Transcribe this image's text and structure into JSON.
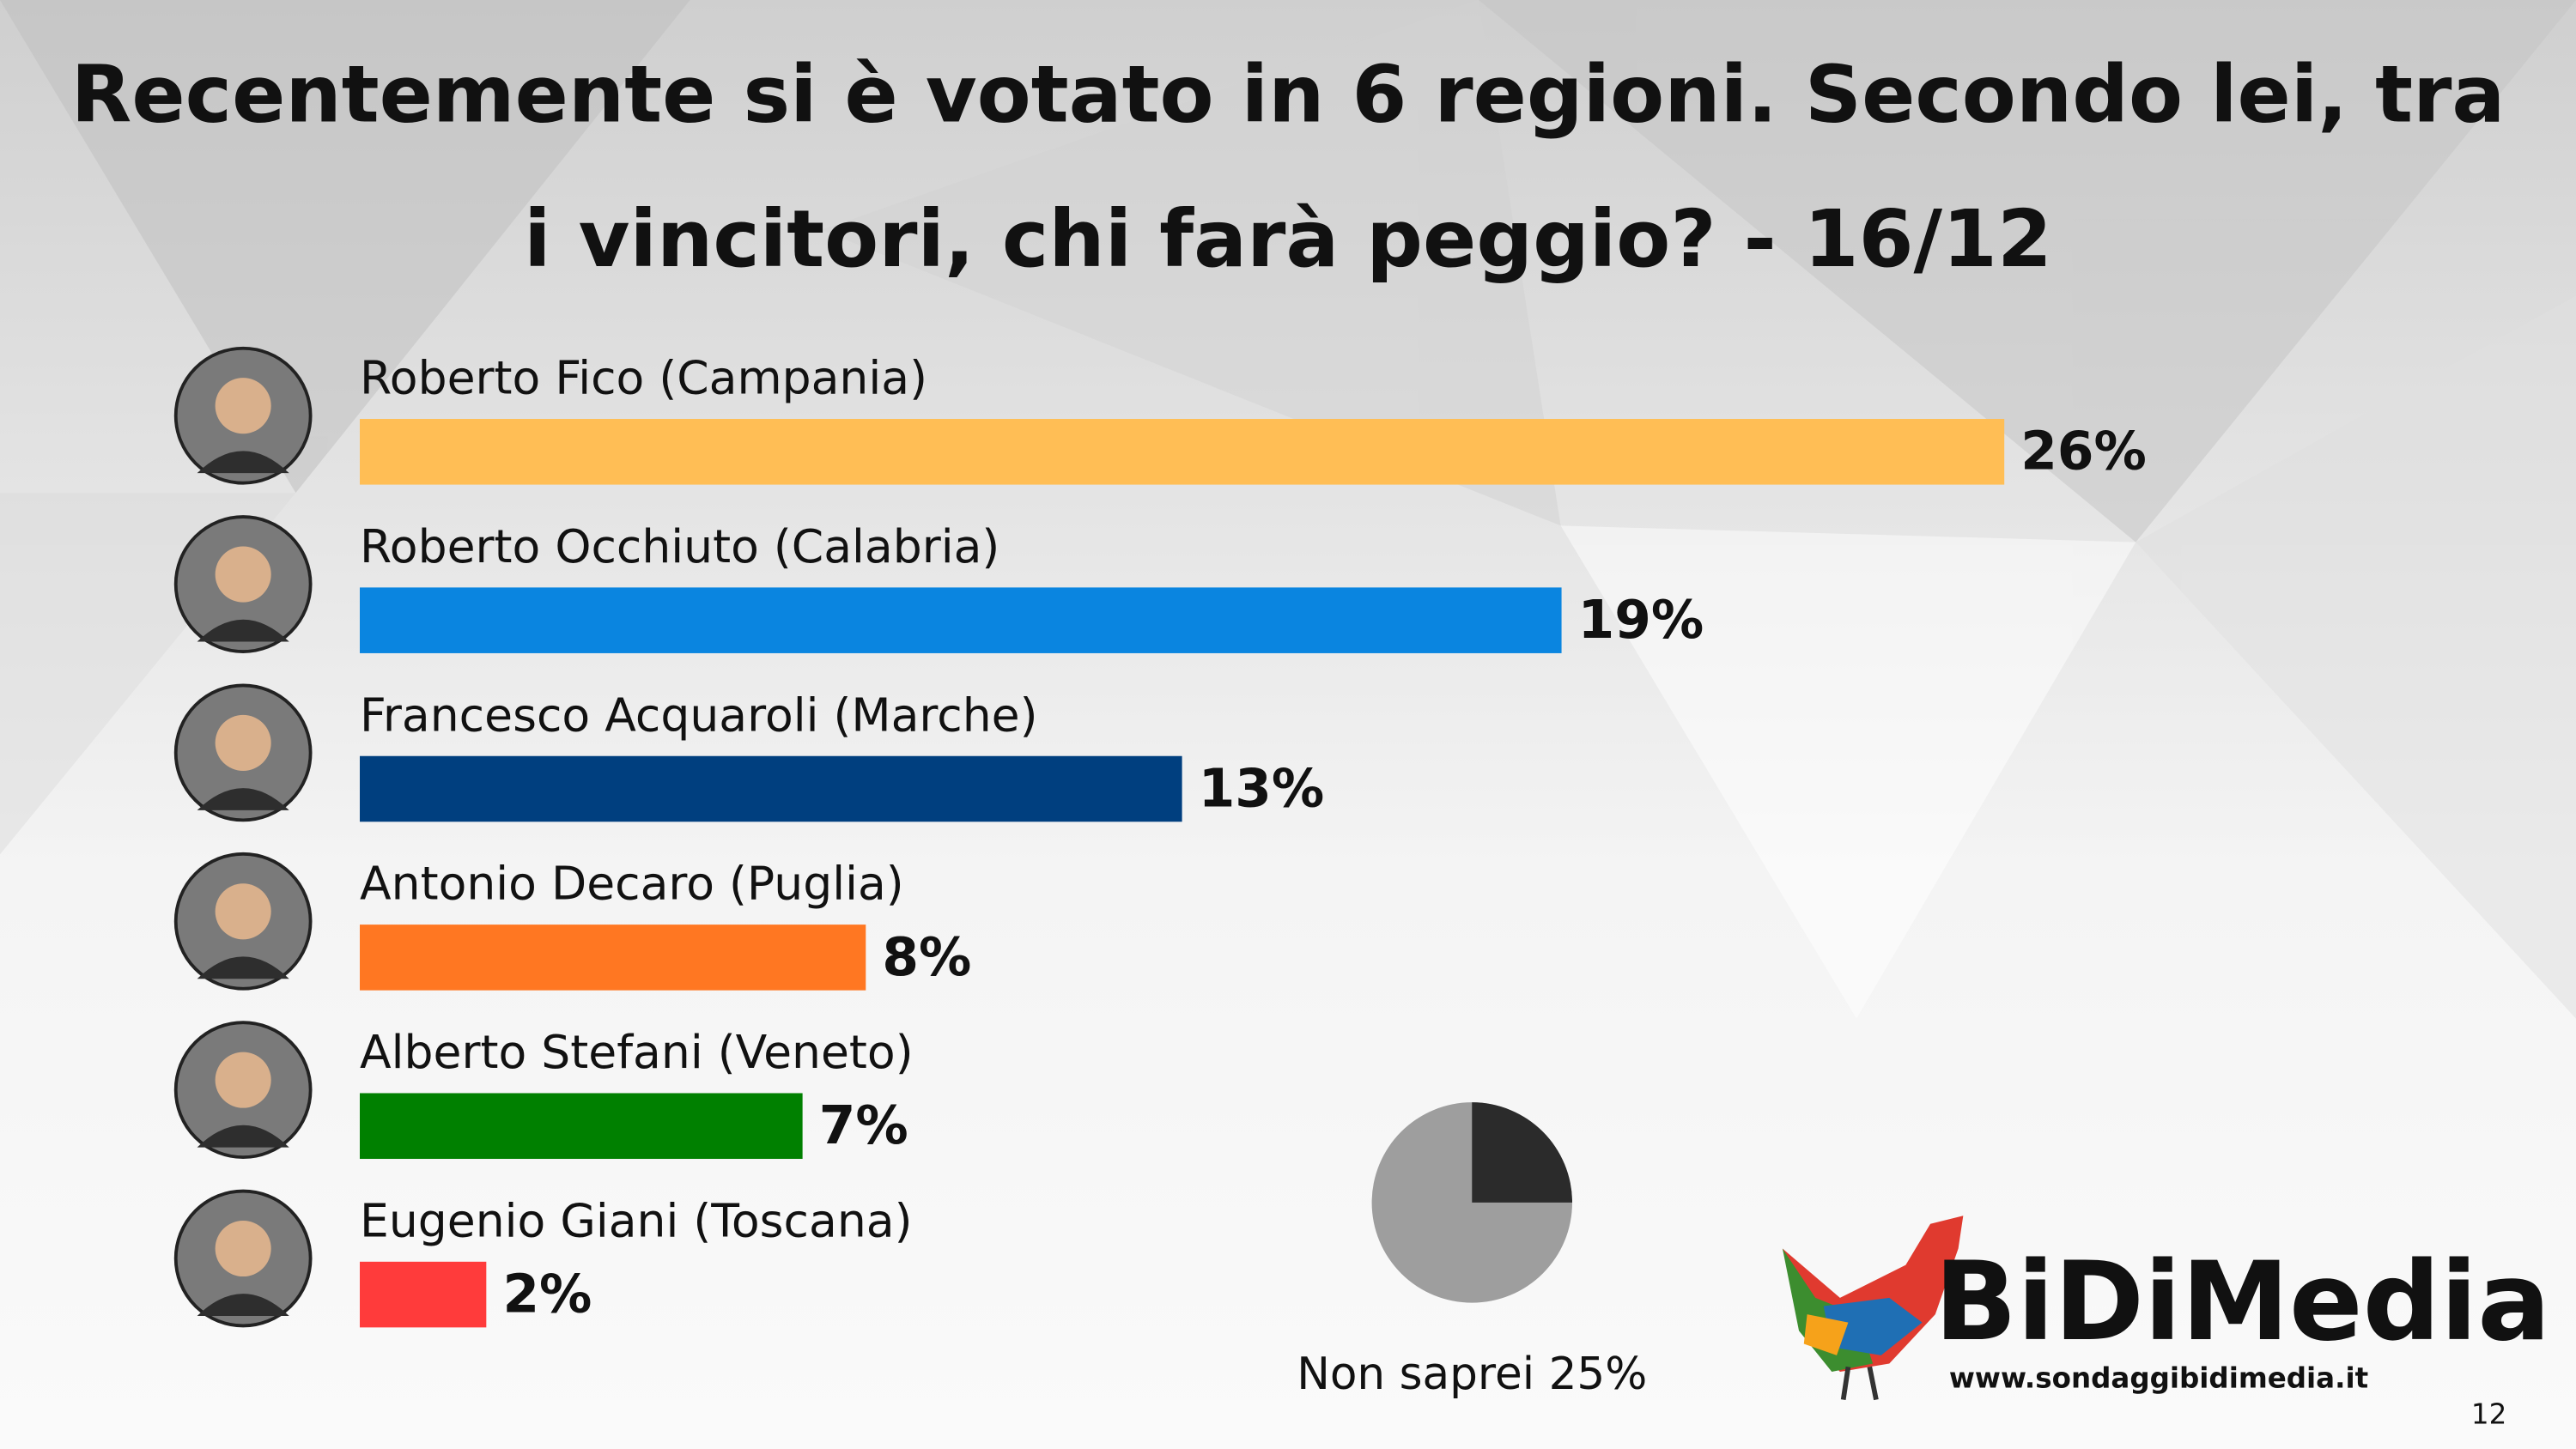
{
  "chart_data": {
    "type": "bar",
    "title": "Recentemente si è votato in 6 regioni. Secondo lei, tra i vincitori, chi farà peggio? - 16/12",
    "categories": [
      "Roberto Fico (Campania)",
      "Roberto Occhiuto (Calabria)",
      "Francesco Acquaroli (Marche)",
      "Antonio Decaro (Puglia)",
      "Alberto Stefani (Veneto)",
      "Eugenio Giani (Toscana)"
    ],
    "values": [
      26,
      19,
      13,
      8,
      7,
      2
    ],
    "value_labels": [
      "26%",
      "19%",
      "13%",
      "8%",
      "7%",
      "2%"
    ],
    "colors": [
      "#ffbe55",
      "#0a85e0",
      "#003f7f",
      "#ff7722",
      "#008000",
      "#ff3b3b"
    ],
    "not_sure": {
      "label": "Non saprei 25%",
      "value": 25,
      "color": "#2b2b2b",
      "rest_color": "#9e9e9e"
    }
  },
  "logo": {
    "name": "BiDiMedia",
    "url": "www.sondaggibidimedia.it"
  },
  "page_number": "12"
}
